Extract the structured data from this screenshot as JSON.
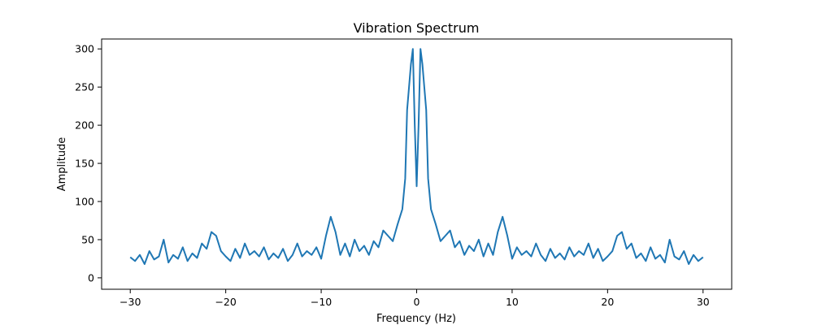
{
  "chart_data": {
    "type": "line",
    "title": "Vibration Spectrum",
    "xlabel": "Frequency (Hz)",
    "ylabel": "Amplitude",
    "xlim": [
      -33,
      33
    ],
    "ylim": [
      -15,
      313
    ],
    "xticks": [
      -30,
      -20,
      -10,
      0,
      10,
      20,
      30
    ],
    "yticks": [
      0,
      50,
      100,
      150,
      200,
      250,
      300
    ],
    "xtick_labels": [
      "−30",
      "−20",
      "−10",
      "0",
      "10",
      "20",
      "30"
    ],
    "ytick_labels": [
      "0",
      "50",
      "100",
      "150",
      "200",
      "250",
      "300"
    ],
    "grid": false,
    "legend": "none",
    "series": [
      {
        "color": "#1f77b4",
        "description": "Noisy FFT magnitude spectrum symmetric about 0 Hz",
        "x": [
          -30,
          -29.5,
          -29,
          -28.5,
          -28,
          -27.5,
          -27,
          -26.5,
          -26,
          -25.5,
          -25,
          -24.5,
          -24,
          -23.5,
          -23,
          -22.5,
          -22,
          -21.5,
          -21,
          -20.5,
          -20,
          -19.5,
          -19,
          -18.5,
          -18,
          -17.5,
          -17,
          -16.5,
          -16,
          -15.5,
          -15,
          -14.5,
          -14,
          -13.5,
          -13,
          -12.5,
          -12,
          -11.5,
          -11,
          -10.5,
          -10,
          -9.5,
          -9,
          -8.5,
          -8,
          -7.5,
          -7,
          -6.5,
          -6,
          -5.5,
          -5,
          -4.5,
          -4,
          -3.5,
          -3,
          -2.5,
          -2,
          -1.5,
          -1.2,
          -1,
          -0.8,
          -0.6,
          -0.4,
          -0.2,
          0,
          0.2,
          0.4,
          0.6,
          0.8,
          1,
          1.2,
          1.5,
          2,
          2.5,
          3,
          3.5,
          4,
          4.5,
          5,
          5.5,
          6,
          6.5,
          7,
          7.5,
          8,
          8.5,
          9,
          9.5,
          10,
          10.5,
          11,
          11.5,
          12,
          12.5,
          13,
          13.5,
          14,
          14.5,
          15,
          15.5,
          16,
          16.5,
          17,
          17.5,
          18,
          18.5,
          19,
          19.5,
          20,
          20.5,
          21,
          21.5,
          22,
          22.5,
          23,
          23.5,
          24,
          24.5,
          25,
          25.5,
          26,
          26.5,
          27,
          27.5,
          28,
          28.5,
          29,
          29.5,
          30
        ],
        "y": [
          27,
          22,
          30,
          18,
          35,
          24,
          28,
          50,
          20,
          30,
          25,
          40,
          22,
          32,
          26,
          45,
          38,
          60,
          55,
          35,
          28,
          22,
          38,
          26,
          45,
          30,
          35,
          28,
          40,
          24,
          32,
          26,
          38,
          22,
          30,
          45,
          28,
          35,
          30,
          40,
          25,
          55,
          80,
          60,
          30,
          45,
          28,
          50,
          35,
          42,
          30,
          48,
          40,
          62,
          55,
          48,
          70,
          90,
          130,
          220,
          250,
          280,
          300,
          200,
          120,
          200,
          300,
          280,
          250,
          220,
          130,
          90,
          70,
          48,
          55,
          62,
          40,
          48,
          30,
          42,
          35,
          50,
          28,
          45,
          30,
          60,
          80,
          55,
          25,
          40,
          30,
          35,
          28,
          45,
          30,
          22,
          38,
          26,
          32,
          24,
          40,
          28,
          35,
          30,
          45,
          26,
          38,
          22,
          28,
          35,
          55,
          60,
          38,
          45,
          26,
          32,
          22,
          40,
          25,
          30,
          20,
          50,
          28,
          24,
          35,
          18,
          30,
          22,
          27
        ]
      }
    ]
  }
}
